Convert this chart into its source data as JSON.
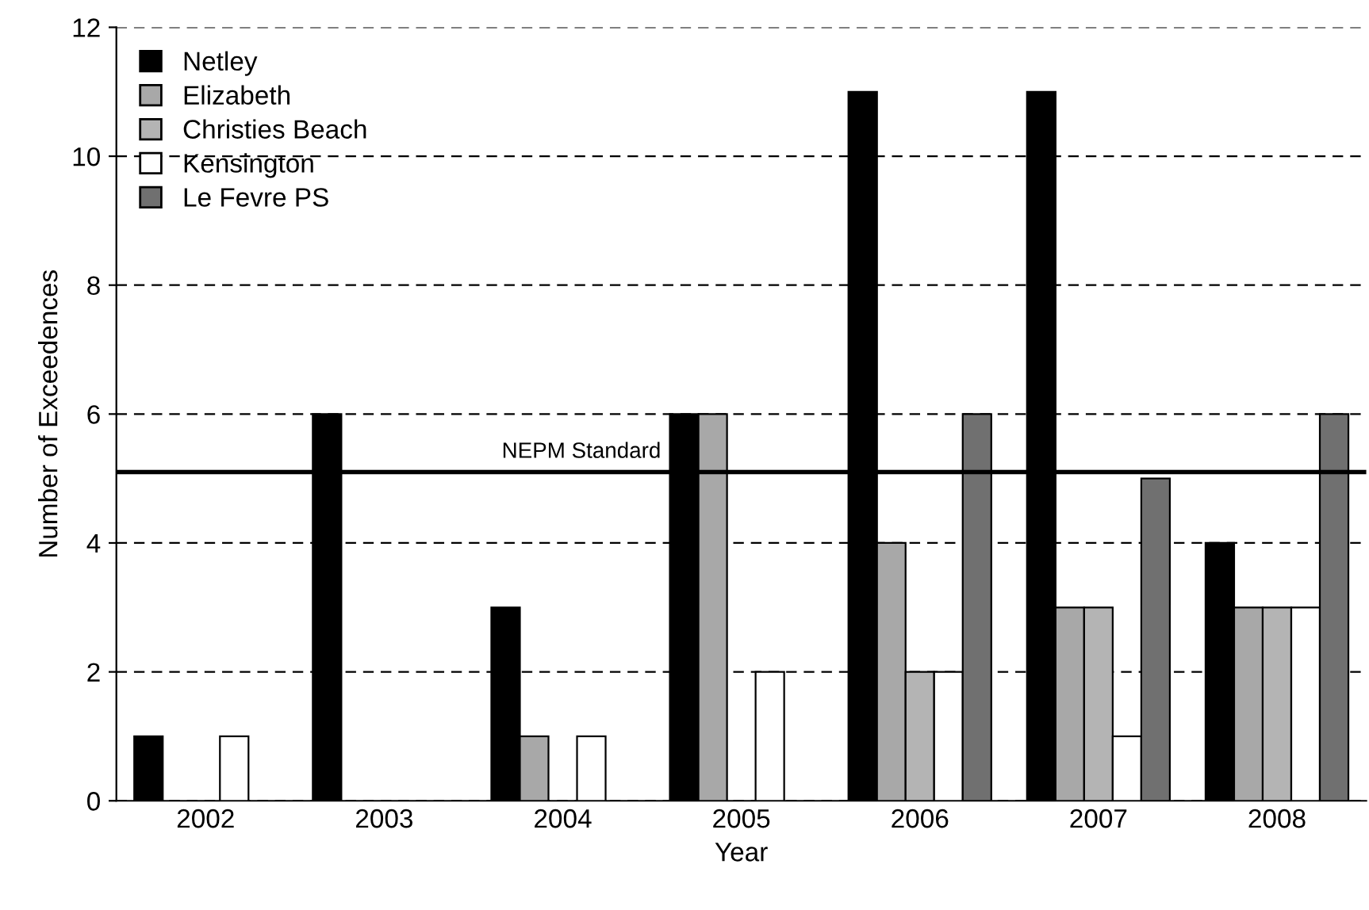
{
  "chart_data": {
    "type": "bar",
    "xlabel": "Year",
    "ylabel": "Number of Exceedences",
    "categories": [
      "2002",
      "2003",
      "2004",
      "2005",
      "2006",
      "2007",
      "2008"
    ],
    "series": [
      {
        "name": "Netley",
        "color": "#000000",
        "values": [
          1,
          6,
          3,
          6,
          11,
          11,
          4
        ]
      },
      {
        "name": "Elizabeth",
        "color": "#a8a8a8",
        "values": [
          null,
          null,
          1,
          6,
          4,
          3,
          3
        ]
      },
      {
        "name": "Christies Beach",
        "color": "#b4b4b4",
        "values": [
          null,
          null,
          null,
          null,
          2,
          3,
          3
        ]
      },
      {
        "name": "Kensington",
        "color": "#ffffff",
        "values": [
          1,
          null,
          1,
          2,
          2,
          1,
          3
        ]
      },
      {
        "name": "Le Fevre PS",
        "color": "#707070",
        "values": [
          null,
          null,
          null,
          null,
          6,
          5,
          6
        ]
      }
    ],
    "ylim": [
      0,
      12
    ],
    "yticks": [
      0,
      2,
      4,
      6,
      8,
      10,
      12
    ],
    "grid": "y",
    "legend": "top left",
    "ref_lines": [
      {
        "axis": "y",
        "value": 5.1,
        "label": "NEPM Standard",
        "color": "#000000"
      }
    ]
  }
}
